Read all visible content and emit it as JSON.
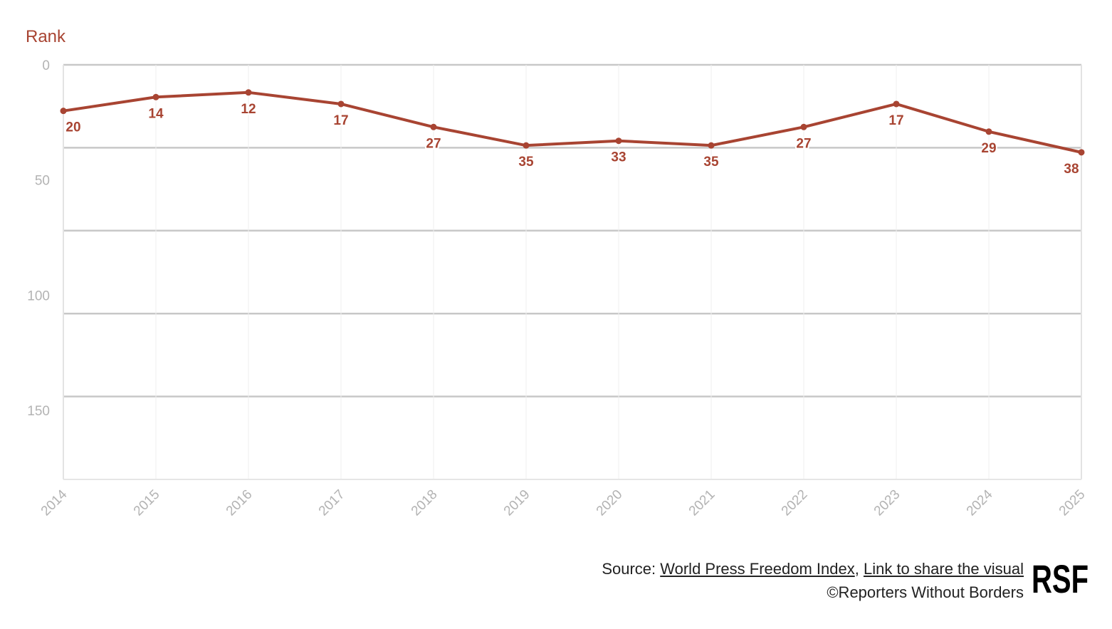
{
  "colors": {
    "line": "#a84432",
    "grid": "#c8c8c8",
    "tick": "#b3b3b3",
    "vgrid": "#efefef"
  },
  "chart_data": {
    "type": "line",
    "ylabel": "Rank",
    "xlabel": "",
    "x": [
      "2014",
      "2015",
      "2016",
      "2017",
      "2018",
      "2019",
      "2020",
      "2021",
      "2022",
      "2023",
      "2024",
      "2025"
    ],
    "series": [
      {
        "values": [
          20,
          14,
          12,
          17,
          27,
          35,
          33,
          35,
          27,
          17,
          29,
          38
        ]
      }
    ],
    "yticks": [
      0,
      50,
      100,
      150
    ],
    "ylim": [
      0,
      180
    ],
    "y_reversed": true,
    "grid": true,
    "legend": "none"
  },
  "footer": {
    "source_prefix": "Source: ",
    "source_link": "World Press Freedom Index",
    "separator": ", ",
    "share_link": "Link to share the visual",
    "copyright": "©Reporters Without Borders"
  },
  "logo": {
    "text": "RSF"
  }
}
